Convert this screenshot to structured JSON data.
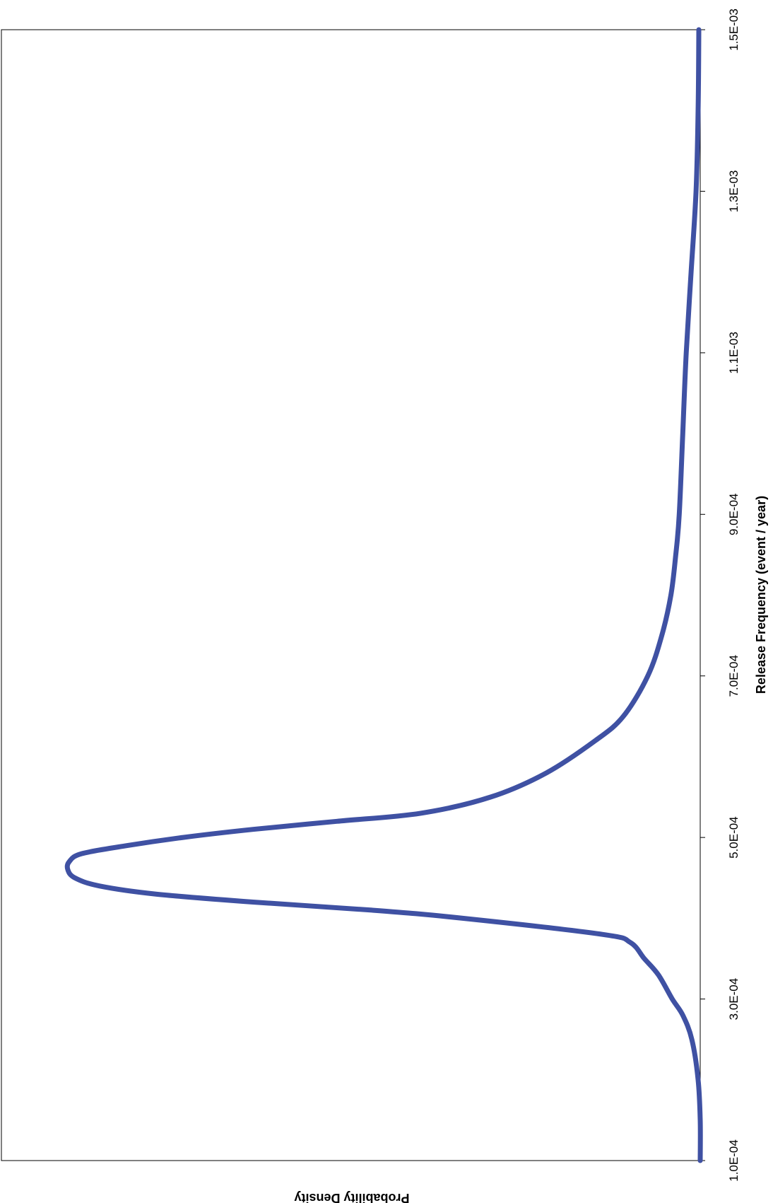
{
  "chart_data": {
    "type": "line",
    "orientation": "rotated-90-clockwise",
    "xlabel": "Release Frequency (event / year)",
    "ylabel": "Probability Density",
    "title": "",
    "xlim": [
      0.0001,
      0.0015
    ],
    "ylim": [
      0,
      1
    ],
    "x_ticks": [
      "1.0E-04",
      "3.0E-04",
      "5.0E-04",
      "7.0E-04",
      "9.0E-04",
      "1.1E-03",
      "1.3E-03",
      "1.5E-03"
    ],
    "x_tick_values": [
      0.0001,
      0.0003,
      0.0005,
      0.0007,
      0.0009,
      0.0011,
      0.0013,
      0.0015
    ],
    "grid": false,
    "legend": "none",
    "colors": {
      "series": "#3f51a3",
      "axis": "#000000"
    },
    "series": [
      {
        "values": [
          [
            0.0001,
            0.0
          ],
          [
            0.00015,
            0.0
          ],
          [
            0.0002,
            0.003
          ],
          [
            0.00025,
            0.012
          ],
          [
            0.00028,
            0.025
          ],
          [
            0.0003,
            0.04
          ],
          [
            0.00033,
            0.06
          ],
          [
            0.00035,
            0.08
          ],
          [
            0.00037,
            0.1
          ],
          [
            0.00038,
            0.14
          ],
          [
            0.0004,
            0.34
          ],
          [
            0.00041,
            0.47
          ],
          [
            0.00042,
            0.64
          ],
          [
            0.00043,
            0.78
          ],
          [
            0.00044,
            0.86
          ],
          [
            0.00045,
            0.895
          ],
          [
            0.00046,
            0.905
          ],
          [
            0.00047,
            0.903
          ],
          [
            0.00048,
            0.885
          ],
          [
            0.00049,
            0.82
          ],
          [
            0.0005,
            0.74
          ],
          [
            0.00051,
            0.64
          ],
          [
            0.00052,
            0.52
          ],
          [
            0.00053,
            0.4
          ],
          [
            0.00055,
            0.3
          ],
          [
            0.00058,
            0.22
          ],
          [
            0.00062,
            0.15
          ],
          [
            0.00065,
            0.11
          ],
          [
            0.0007,
            0.075
          ],
          [
            0.00075,
            0.055
          ],
          [
            0.0008,
            0.042
          ],
          [
            0.00085,
            0.035
          ],
          [
            0.0009,
            0.03
          ],
          [
            0.001,
            0.025
          ],
          [
            0.0011,
            0.02
          ],
          [
            0.0012,
            0.013
          ],
          [
            0.0013,
            0.006
          ],
          [
            0.0014,
            0.003
          ],
          [
            0.0015,
            0.002
          ]
        ]
      }
    ]
  }
}
